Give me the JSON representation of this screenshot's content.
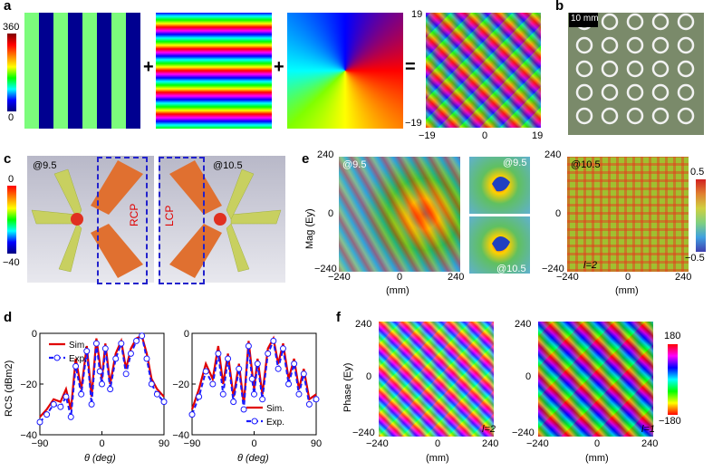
{
  "panels": {
    "a": "a",
    "b": "b",
    "c": "c",
    "d": "d",
    "e": "e",
    "f": "f"
  },
  "a": {
    "colorbar": {
      "max": "360",
      "min": "0"
    },
    "ops": [
      "+",
      "+",
      "="
    ],
    "axis": {
      "y_top": "19",
      "y_bottom": "−19",
      "x_left": "−19",
      "x_mid": "0",
      "x_right": "19"
    }
  },
  "b": {
    "scale": "10 mm"
  },
  "c": {
    "colorbar": {
      "max": "0",
      "min": "−40"
    },
    "freq_left": "@9.5",
    "freq_right": "@10.5",
    "rcp": "RCP",
    "lcp": "LCP"
  },
  "e": {
    "ylabel": "Mag (Ey)",
    "y_top": "240",
    "y_mid": "0",
    "y_bottom": "−240",
    "x_left": "−240",
    "x_mid": "0",
    "x_right": "240",
    "xlabel": "(mm)",
    "freq_left": "@9.5",
    "inset_top": "@9.5",
    "inset_bottom": "@10.5",
    "freq_right": "@10.5",
    "l_right": "l=2",
    "colorbar": {
      "max": "0.5",
      "min": "−0.5"
    }
  },
  "f": {
    "ylabel": "Phase (Ey)",
    "y_top": "240",
    "y_mid": "0",
    "y_bottom": "−240",
    "x_left": "−240",
    "x_mid": "0",
    "x_right": "240",
    "xlabel": "(mm)",
    "l_left": "l=2",
    "l_right": "l=1",
    "colorbar": {
      "max": "180",
      "min": "−180"
    }
  },
  "chart_data": [
    {
      "type": "line",
      "panel": "d-left",
      "ylabel": "RCS (dBm2)",
      "xlabel": "θ (deg)",
      "xlim": [
        -90,
        90
      ],
      "ylim": [
        -40,
        0
      ],
      "xticks": [
        "−90",
        "0",
        "90"
      ],
      "yticks": [
        "0",
        "−20",
        "−40"
      ],
      "legend_position": "top-left",
      "series": [
        {
          "name": "Sim.",
          "color": "#e00000",
          "x": [
            -90,
            -80,
            -70,
            -60,
            -52,
            -45,
            -38,
            -30,
            -22,
            -15,
            -8,
            -3,
            0,
            5,
            12,
            20,
            28,
            35,
            42,
            50,
            58,
            65,
            72,
            80,
            90
          ],
          "y": [
            -33,
            -30,
            -26,
            -27,
            -22,
            -30,
            -10,
            -22,
            -5,
            -25,
            -2,
            -12,
            -18,
            -4,
            -20,
            -8,
            -3,
            -14,
            -6,
            -2,
            -1,
            -8,
            -18,
            -22,
            -25
          ]
        },
        {
          "name": "Exp.",
          "color": "#1a1aff",
          "x": [
            -90,
            -80,
            -70,
            -60,
            -52,
            -45,
            -38,
            -30,
            -22,
            -15,
            -8,
            -3,
            0,
            5,
            12,
            20,
            28,
            35,
            42,
            50,
            58,
            65,
            72,
            80,
            90
          ],
          "y": [
            -35,
            -32,
            -28,
            -29,
            -25,
            -33,
            -13,
            -24,
            -7,
            -28,
            -4,
            -15,
            -20,
            -6,
            -22,
            -10,
            -4,
            -16,
            -8,
            -3,
            -1,
            -10,
            -20,
            -24,
            -27
          ]
        }
      ]
    },
    {
      "type": "line",
      "panel": "d-right",
      "xlabel": "θ (deg)",
      "xlim": [
        -90,
        90
      ],
      "ylim": [
        -40,
        0
      ],
      "xticks": [
        "−90",
        "0",
        "90"
      ],
      "yticks": [
        "0",
        "−20",
        "−40"
      ],
      "legend_position": "bottom-right",
      "series": [
        {
          "name": "Sim.",
          "color": "#e00000",
          "x": [
            -90,
            -80,
            -70,
            -60,
            -52,
            -45,
            -38,
            -30,
            -22,
            -15,
            -8,
            -3,
            0,
            5,
            12,
            20,
            28,
            35,
            42,
            50,
            58,
            65,
            72,
            80,
            90
          ],
          "y": [
            -30,
            -22,
            -12,
            -18,
            -5,
            -20,
            -8,
            -25,
            -12,
            -28,
            -3,
            -15,
            -22,
            -10,
            -24,
            -6,
            -2,
            -12,
            -4,
            -18,
            -10,
            -22,
            -14,
            -26,
            -24
          ]
        },
        {
          "name": "Exp.",
          "color": "#1a1aff",
          "x": [
            -90,
            -80,
            -70,
            -60,
            -52,
            -45,
            -38,
            -30,
            -22,
            -15,
            -8,
            -3,
            0,
            5,
            12,
            20,
            28,
            35,
            42,
            50,
            58,
            65,
            72,
            80,
            90
          ],
          "y": [
            -32,
            -25,
            -15,
            -20,
            -8,
            -24,
            -10,
            -27,
            -14,
            -30,
            -5,
            -18,
            -24,
            -12,
            -26,
            -8,
            -3,
            -14,
            -6,
            -20,
            -12,
            -24,
            -16,
            -28,
            -26
          ]
        }
      ]
    }
  ]
}
